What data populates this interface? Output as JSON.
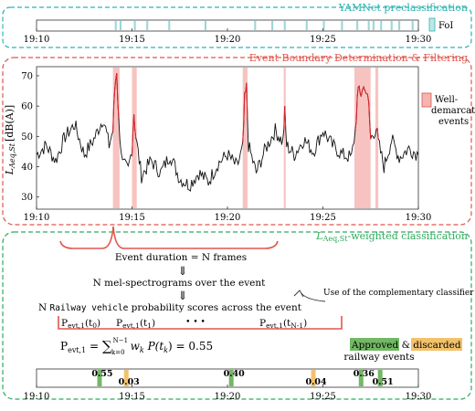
{
  "panels": {
    "top": {
      "title": "YAMNet preclassification",
      "legend": "FoI",
      "color": "#2bb3b3"
    },
    "middle": {
      "title": "Event Boundary Determination & Filtering",
      "ylabel_main": "L",
      "ylabel_sub": "Aeq,St",
      "ylabel_unit": "[dB(A)]",
      "legend_line1": "Well-",
      "legend_line2": "demarcated",
      "legend_line3": "events",
      "color": "#e0564b"
    },
    "bottom": {
      "title_main": "L",
      "title_sub": "Aeq,St",
      "title_rest": "-weighted classification",
      "color": "#2eaa5c"
    }
  },
  "time_ticks": [
    "19:10",
    "19:15",
    "19:20",
    "19:25",
    "19:30"
  ],
  "y_ticks": [
    "70",
    "60",
    "50",
    "40",
    "30"
  ],
  "flow": {
    "step1": "Event duration = N frames",
    "step2": "N mel-spectrograms over the event",
    "step3_prefix": "N ",
    "step3_mono": "Railway vehicle",
    "step3_suffix": " probability scores across the event",
    "side_note": "Use of the complementary classifier",
    "p0": "P",
    "p0_sub": "evt,1",
    "p0_arg": "(t",
    "p0_argsub": "0",
    "p0_close": ")",
    "p1_argsub": "1",
    "pN_argsub": "N-1",
    "dots": "• • •",
    "formula_lhs": "P",
    "formula_lhs_sub": "evt,1",
    "formula_eq": " = ",
    "formula_sum": "∑",
    "formula_sum_top": "N−1",
    "formula_sum_bottom": "k=0",
    "formula_body": "w",
    "formula_body_sub": "k",
    "formula_p": " P(t",
    "formula_p_sub": "k",
    "formula_result": ") = 0.55"
  },
  "legend_bottom": {
    "approved": "Approved",
    "amp": " & ",
    "discarded": "discarded",
    "line2": "railway events",
    "approved_color": "#72b865",
    "discarded_color": "#f2c26b"
  },
  "scores": [
    {
      "label": "0.55",
      "status": "approved",
      "t": 13.3
    },
    {
      "label": "0.03",
      "status": "discarded",
      "t": 14.7
    },
    {
      "label": "0.40",
      "status": "approved",
      "t": 20.2
    },
    {
      "label": "0.04",
      "status": "discarded",
      "t": 24.5
    },
    {
      "label": "0.36",
      "status": "approved",
      "t": 27.0
    },
    {
      "label": "0.51",
      "status": "approved",
      "t": 28.0
    }
  ],
  "chart_data": {
    "type": "line",
    "x_unit": "minutes after 19:10",
    "xlim": [
      0,
      20
    ],
    "ylim": [
      26,
      73
    ],
    "foi_intervals_min": [
      [
        4.1,
        4.2
      ],
      [
        4.35,
        4.45
      ],
      [
        5.1,
        5.2
      ],
      [
        5.75,
        5.85
      ],
      [
        6.9,
        7.0
      ],
      [
        8.8,
        8.9
      ],
      [
        11.4,
        11.5
      ],
      [
        12.3,
        12.4
      ],
      [
        12.95,
        13.05
      ],
      [
        14.1,
        14.2
      ],
      [
        15.0,
        15.1
      ],
      [
        15.95,
        16.05
      ],
      [
        16.75,
        16.85
      ],
      [
        17.35,
        17.45
      ],
      [
        17.6,
        17.7
      ],
      [
        18.0,
        18.1
      ],
      [
        18.55,
        18.65
      ],
      [
        18.95,
        19.05
      ],
      [
        19.65,
        19.75
      ]
    ],
    "event_intervals_min": [
      [
        4.0,
        4.35
      ],
      [
        5.0,
        5.25
      ],
      [
        10.8,
        11.05
      ],
      [
        12.95,
        13.05
      ],
      [
        16.65,
        17.5
      ],
      [
        17.75,
        17.9
      ]
    ],
    "series": [
      {
        "values": [
          [
            0,
            44
          ],
          [
            0.5,
            47
          ],
          [
            1,
            42
          ],
          [
            1.5,
            50
          ],
          [
            2,
            54
          ],
          [
            2.5,
            44
          ],
          [
            3,
            49
          ],
          [
            3.5,
            56
          ],
          [
            3.8,
            47
          ],
          [
            4.0,
            52
          ],
          [
            4.1,
            66
          ],
          [
            4.2,
            72
          ],
          [
            4.3,
            55
          ],
          [
            4.5,
            41
          ],
          [
            4.8,
            39
          ],
          [
            5.0,
            46
          ],
          [
            5.1,
            58
          ],
          [
            5.2,
            50
          ],
          [
            5.5,
            37
          ],
          [
            6,
            42
          ],
          [
            6.5,
            38
          ],
          [
            7,
            44
          ],
          [
            7.5,
            36
          ],
          [
            8,
            34
          ],
          [
            8.5,
            38
          ],
          [
            9,
            35
          ],
          [
            9.5,
            41
          ],
          [
            10,
            44
          ],
          [
            10.5,
            40
          ],
          [
            10.8,
            46
          ],
          [
            10.9,
            62
          ],
          [
            11.0,
            66
          ],
          [
            11.1,
            47
          ],
          [
            11.5,
            38
          ],
          [
            12,
            46
          ],
          [
            12.5,
            52
          ],
          [
            12.9,
            48
          ],
          [
            13.0,
            58
          ],
          [
            13.1,
            47
          ],
          [
            13.5,
            44
          ],
          [
            14,
            49
          ],
          [
            14.5,
            45
          ],
          [
            15,
            52
          ],
          [
            15.5,
            47
          ],
          [
            16,
            44
          ],
          [
            16.5,
            43
          ],
          [
            16.7,
            52
          ],
          [
            16.8,
            62
          ],
          [
            16.9,
            66
          ],
          [
            17.0,
            64
          ],
          [
            17.2,
            67
          ],
          [
            17.4,
            60
          ],
          [
            17.5,
            49
          ],
          [
            17.8,
            53
          ],
          [
            17.9,
            48
          ],
          [
            18.2,
            40
          ],
          [
            18.6,
            49
          ],
          [
            19,
            43
          ],
          [
            19.5,
            46
          ],
          [
            20,
            44
          ]
        ]
      }
    ]
  }
}
